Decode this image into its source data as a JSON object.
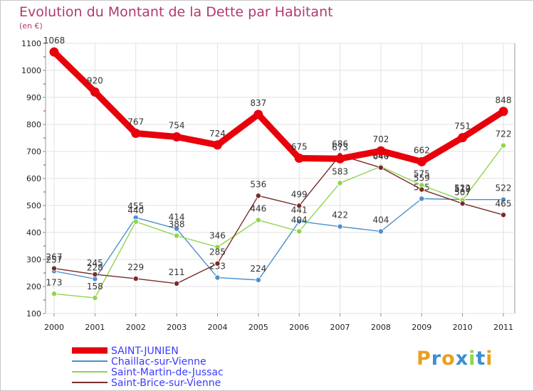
{
  "chart_data": {
    "type": "line",
    "title": "Evolution du Montant de la Dette par Habitant",
    "subtitle": "(en €)",
    "xlabel": "",
    "ylabel": "",
    "categories": [
      "2000",
      "2001",
      "2002",
      "2003",
      "2004",
      "2005",
      "2006",
      "2007",
      "2008",
      "2009",
      "2010",
      "2011"
    ],
    "ylim": [
      100,
      1100
    ],
    "yticks": [
      100,
      200,
      300,
      400,
      500,
      600,
      700,
      800,
      900,
      1000,
      1100
    ],
    "grid": true,
    "legend_position": "bottom-left",
    "series": [
      {
        "name": "SAINT-JUNIEN",
        "color": "#e8000b",
        "values": [
          1068,
          920,
          767,
          754,
          724,
          837,
          675,
          673,
          702,
          662,
          751,
          848
        ]
      },
      {
        "name": "Chaillac-sur-Vienne",
        "color": "#4a90d0",
        "values": [
          257,
          228,
          455,
          414,
          233,
          224,
          441,
          422,
          404,
          525,
          522,
          522
        ]
      },
      {
        "name": "Saint-Martin-de-Jussac",
        "color": "#8fd44c",
        "values": [
          173,
          158,
          440,
          388,
          346,
          446,
          404,
          583,
          644,
          575,
          519,
          722
        ]
      },
      {
        "name": "Saint-Brice-sur-Vienne",
        "color": "#7a2a2a",
        "values": [
          267,
          245,
          229,
          211,
          285,
          536,
          499,
          686,
          640,
          559,
          507,
          465
        ]
      }
    ]
  },
  "logo": {
    "text": "Proxiti"
  }
}
